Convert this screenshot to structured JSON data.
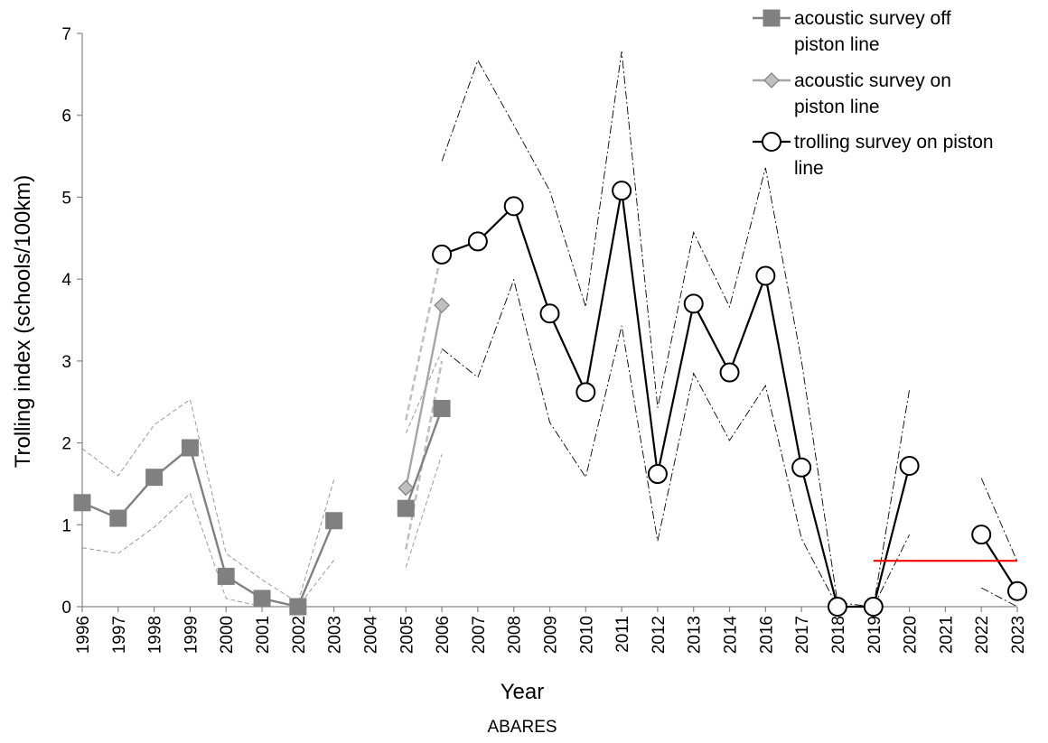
{
  "chart_data": {
    "type": "line",
    "title": "",
    "xlabel": "Year",
    "ylabel": "Trolling index (schools/100km)",
    "caption": "ABARES",
    "ylim": [
      0,
      7
    ],
    "yticks": [
      "0",
      "1",
      "2",
      "3",
      "4",
      "5",
      "6",
      "7"
    ],
    "categories": [
      "1996",
      "1997",
      "1998",
      "1999",
      "2000",
      "2001",
      "2002",
      "2003",
      "2004",
      "2005",
      "2006",
      "2007",
      "2008",
      "2009",
      "2010",
      "2011",
      "2012",
      "2013",
      "2014",
      "2016",
      "2017",
      "2018",
      "2019",
      "2020",
      "2021",
      "2022",
      "2023"
    ],
    "grid": false,
    "legend_position": "top-right",
    "legend": [
      {
        "lines": [
          "acoustic survey off",
          "piston line"
        ],
        "series": 0
      },
      {
        "lines": [
          "acoustic survey on",
          "piston line"
        ],
        "series": 1
      },
      {
        "lines": [
          "trolling survey on piston",
          "line"
        ],
        "series": 2
      }
    ],
    "series": [
      {
        "name": "acoustic survey off piston line",
        "color": "#808080",
        "marker": "square",
        "segments": [
          {
            "x": [
              "1996",
              "1997",
              "1998",
              "1999",
              "2000",
              "2001",
              "2002",
              "2003"
            ],
            "y": [
              1.27,
              1.08,
              1.58,
              1.94,
              0.37,
              0.1,
              0.0,
              1.05
            ]
          },
          {
            "x": [
              "2005",
              "2006"
            ],
            "y": [
              1.2,
              2.42
            ]
          }
        ],
        "upper": [
          {
            "x": [
              "1996",
              "1997",
              "1998",
              "1999",
              "2000",
              "2001",
              "2002",
              "2003"
            ],
            "y": [
              1.93,
              1.6,
              2.22,
              2.53,
              0.65,
              0.33,
              0.05,
              1.55
            ]
          },
          {
            "x": [
              "2005",
              "2006"
            ],
            "y": [
              2.12,
              3.13
            ]
          }
        ],
        "lower": [
          {
            "x": [
              "1996",
              "1997",
              "1998",
              "1999",
              "2000",
              "2001",
              "2002",
              "2003"
            ],
            "y": [
              0.72,
              0.65,
              0.97,
              1.38,
              0.1,
              0.0,
              0.0,
              0.57
            ]
          },
          {
            "x": [
              "2005",
              "2006"
            ],
            "y": [
              0.48,
              1.86
            ]
          }
        ]
      },
      {
        "name": "acoustic survey on piston line",
        "color": "#a6a6a6",
        "marker": "diamond",
        "segments": [
          {
            "x": [
              "2005",
              "2006"
            ],
            "y": [
              1.45,
              3.68
            ]
          }
        ],
        "upper": [
          {
            "x": [
              "2005",
              "2006"
            ],
            "y": [
              2.28,
              4.35
            ]
          }
        ],
        "lower": [
          {
            "x": [
              "2005",
              "2006"
            ],
            "y": [
              0.7,
              3.0
            ]
          }
        ]
      },
      {
        "name": "trolling survey on piston line",
        "color": "#000000",
        "marker": "circle",
        "segments": [
          {
            "x": [
              "2006",
              "2007",
              "2008",
              "2009",
              "2010",
              "2011",
              "2012",
              "2013",
              "2014",
              "2016",
              "2017",
              "2018",
              "2019",
              "2020"
            ],
            "y": [
              4.3,
              4.46,
              4.89,
              3.58,
              2.62,
              5.08,
              1.62,
              3.7,
              2.86,
              4.04,
              1.7,
              0.0,
              0.0,
              1.72
            ]
          },
          {
            "x": [
              "2022",
              "2023"
            ],
            "y": [
              0.88,
              0.19
            ]
          }
        ],
        "upper": [
          {
            "x": [
              "2006",
              "2007",
              "2008",
              "2009",
              "2010",
              "2011",
              "2012",
              "2013",
              "2014",
              "2016",
              "2017",
              "2018",
              "2019",
              "2020"
            ],
            "y": [
              5.44,
              6.67,
              5.88,
              5.08,
              3.66,
              6.78,
              2.43,
              4.57,
              3.66,
              5.36,
              3.0,
              0.05,
              0.0,
              2.65
            ]
          },
          {
            "x": [
              "2022",
              "2023"
            ],
            "y": [
              1.57,
              0.55
            ]
          }
        ],
        "lower": [
          {
            "x": [
              "2006",
              "2007",
              "2008",
              "2009",
              "2010",
              "2011",
              "2012",
              "2013",
              "2014",
              "2016",
              "2017",
              "2018",
              "2019",
              "2020"
            ],
            "y": [
              3.15,
              2.8,
              3.99,
              2.25,
              1.58,
              3.43,
              0.8,
              2.85,
              2.03,
              2.7,
              0.83,
              0.0,
              0.0,
              0.88
            ]
          },
          {
            "x": [
              "2022",
              "2023"
            ],
            "y": [
              0.23,
              0.0
            ]
          }
        ]
      }
    ],
    "reference_line": {
      "color": "#ff0000",
      "x_start": "2019",
      "x_end": "2023",
      "y": 0.56
    }
  }
}
